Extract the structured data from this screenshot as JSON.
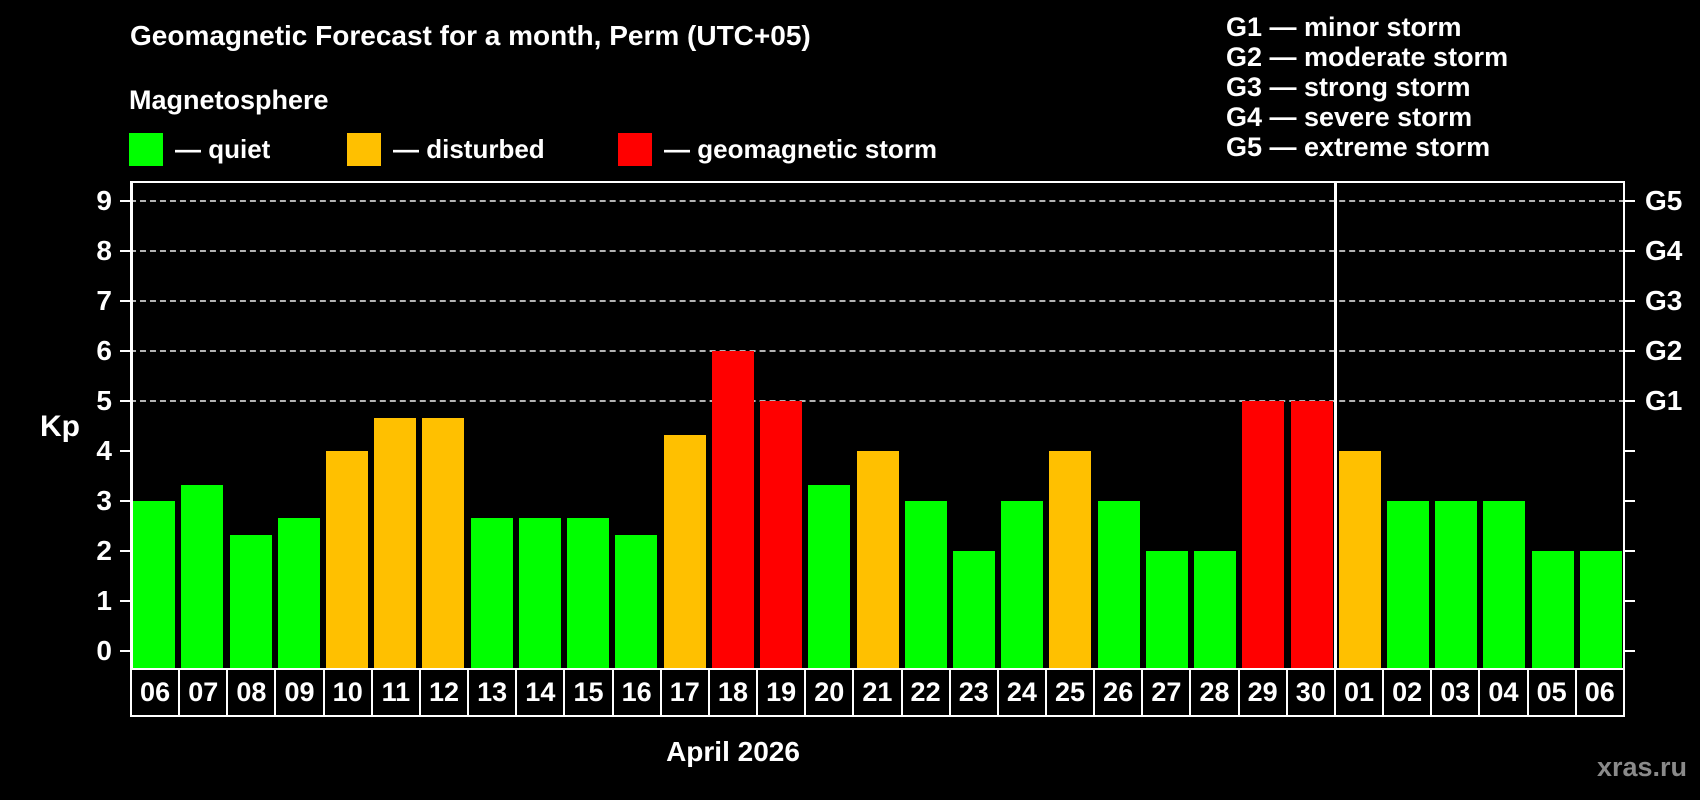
{
  "header": {
    "title": "Geomagnetic Forecast for a month, Perm (UTC+05)",
    "subtitle": "Magnetosphere"
  },
  "legend": {
    "items": [
      {
        "name": "quiet",
        "label": "— quiet",
        "color": "#00ff00"
      },
      {
        "name": "disturbed",
        "label": "— disturbed",
        "color": "#ffc000"
      },
      {
        "name": "storm",
        "label": "— geomagnetic storm",
        "color": "#ff0000"
      }
    ]
  },
  "g_legend": [
    "G1 — minor storm",
    "G2 — moderate storm",
    "G3 — strong storm",
    "G4 — severe storm",
    "G5 — extreme storm"
  ],
  "chart_data": {
    "type": "bar",
    "title": "Geomagnetic Forecast for a month, Perm (UTC+05)",
    "xlabel": "April 2026",
    "ylabel": "Kp",
    "ylim": [
      -0.34,
      9.4
    ],
    "yticks": [
      "0",
      "1",
      "2",
      "3",
      "4",
      "5",
      "6",
      "7",
      "8",
      "9"
    ],
    "grid_levels": [
      5,
      6,
      7,
      8,
      9
    ],
    "grid_style": "dashed",
    "legend_position": "top",
    "right_axis_labels": [
      {
        "label": "G1",
        "kp": 5
      },
      {
        "label": "G2",
        "kp": 6
      },
      {
        "label": "G3",
        "kp": 7
      },
      {
        "label": "G4",
        "kp": 8
      },
      {
        "label": "G5",
        "kp": 9
      }
    ],
    "categories": [
      "06",
      "07",
      "08",
      "09",
      "10",
      "11",
      "12",
      "13",
      "14",
      "15",
      "16",
      "17",
      "18",
      "19",
      "20",
      "21",
      "22",
      "23",
      "24",
      "25",
      "26",
      "27",
      "28",
      "29",
      "30",
      "01",
      "02",
      "03",
      "04",
      "05",
      "06"
    ],
    "values": [
      3.0,
      3.33,
      2.33,
      2.67,
      4.0,
      4.67,
      4.67,
      2.67,
      2.67,
      2.67,
      2.33,
      4.33,
      6.0,
      5.0,
      3.33,
      4.0,
      3.0,
      2.0,
      3.0,
      4.0,
      3.0,
      2.0,
      2.0,
      5.0,
      5.0,
      4.0,
      3.0,
      3.0,
      3.0,
      2.0,
      2.0
    ],
    "month_separator_after_index": 24,
    "colors": {
      "quiet": "#00ff00",
      "disturbed": "#ffc000",
      "storm": "#ff0000"
    },
    "thresholds": {
      "disturbed_min": 4,
      "storm_min": 5
    }
  },
  "footer": {
    "watermark": "xras.ru"
  }
}
